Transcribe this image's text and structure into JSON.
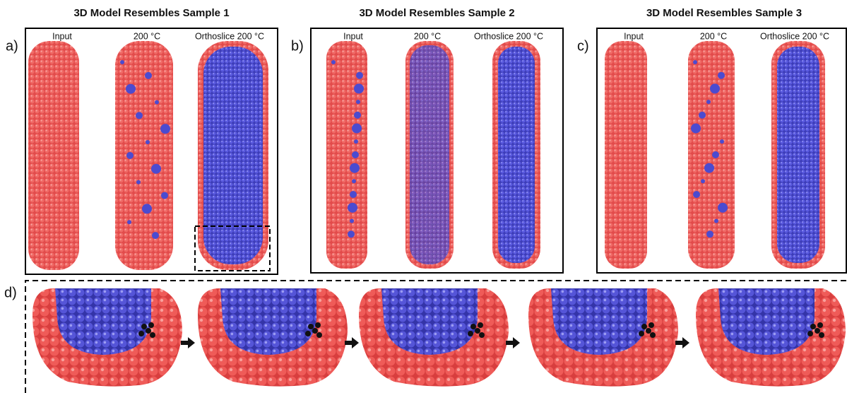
{
  "panels": [
    {
      "letter": "a)",
      "title": "3D Model Resembles Sample 1",
      "columns": [
        "Input",
        "200 °C",
        "Orthoslice 200 °C"
      ]
    },
    {
      "letter": "b)",
      "title": "3D Model Resembles Sample 2",
      "columns": [
        "Input",
        "200 °C",
        "Orthoslice 200 °C"
      ]
    },
    {
      "letter": "c)",
      "title": "3D Model Resembles Sample 3",
      "columns": [
        "Input",
        "200 °C",
        "Orthoslice 200 °C"
      ]
    }
  ],
  "detail": {
    "letter": "d)"
  }
}
